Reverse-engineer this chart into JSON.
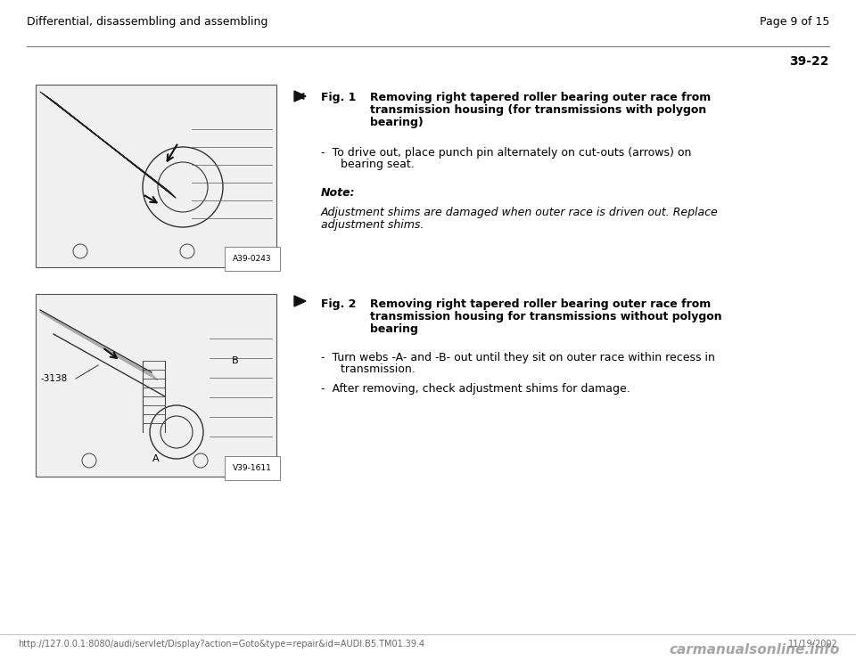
{
  "bg_color": "#ffffff",
  "page_width": 9.6,
  "page_height": 7.42,
  "header_left": "Differential, disassembling and assembling",
  "header_right": "Page 9 of 15",
  "page_number": "39-22",
  "section1": {
    "fig_label": "Fig. 1",
    "fig_title_line1": "Removing right tapered roller bearing outer race from",
    "fig_title_line2": "transmission housing (for transmissions with polygon",
    "fig_title_line3": "bearing)",
    "bullet1_line1": "-  To drive out, place punch pin alternately on cut-outs (arrows) on",
    "bullet1_line2": "   bearing seat.",
    "note_label": "Note:",
    "note_line1": "Adjustment shims are damaged when outer race is driven out. Replace",
    "note_line2": "adjustment shims.",
    "img_label": "A39-0243"
  },
  "section2": {
    "fig_label": "Fig. 2",
    "fig_title_line1": "Removing right tapered roller bearing outer race from",
    "fig_title_line2": "transmission housing for transmissions without polygon",
    "fig_title_line3": "bearing",
    "bullet1_line1": "-  Turn webs -A- and -B- out until they sit on outer race within recess in",
    "bullet1_line2": "   transmission.",
    "bullet2": "-  After removing, check adjustment shims for damage.",
    "img_label": "V39-1611",
    "tool_label": "3138",
    "label_A": "A",
    "label_B": "B"
  },
  "footer_url": "http://127.0.0.1:8080/audi/servlet/Display?action=Goto&type=repair&id=AUDI.B5.TM01.39.4",
  "footer_date": "11/19/2002",
  "footer_logo": "carmanualsonline.info",
  "text_color": "#000000",
  "header_fontsize": 9,
  "body_fontsize": 9,
  "fig_label_fontsize": 9,
  "note_fontsize": 9,
  "page_num_fontsize": 10,
  "footer_fontsize": 7
}
